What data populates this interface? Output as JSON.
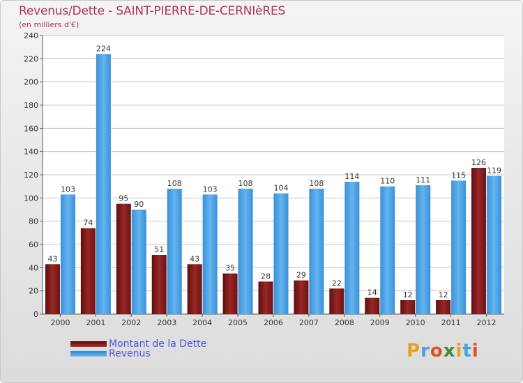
{
  "header": {
    "title": "Revenus/Dette - SAINT-PIERRE-DE-CERNIèRES",
    "subtitle": "(en milliers d'€)"
  },
  "legend": [
    {
      "label": "Montant de la Dette",
      "color": "#8b1a1a"
    },
    {
      "label": "Revenus",
      "color": "#3d9be0"
    }
  ],
  "logo": {
    "letters": [
      "P",
      "r",
      "o",
      "x",
      "i",
      "t",
      "i"
    ],
    "colors": [
      "#e8a020",
      "#4aa0e0",
      "#e05020",
      "#3c8c3c",
      "#e8a020",
      "#4aa0e0",
      "#e05020"
    ]
  },
  "chart_data": {
    "type": "bar",
    "title": "Revenus/Dette - SAINT-PIERRE-DE-CERNIèRES",
    "subtitle": "(en milliers d'€)",
    "categories": [
      "2000",
      "2001",
      "2002",
      "2003",
      "2004",
      "2005",
      "2006",
      "2007",
      "2008",
      "2009",
      "2010",
      "2011",
      "2012"
    ],
    "series": [
      {
        "name": "Montant de la Dette",
        "color": "#8b1a1a",
        "values": [
          43,
          74,
          95,
          51,
          43,
          35,
          28,
          29,
          22,
          14,
          12,
          12,
          126
        ]
      },
      {
        "name": "Revenus",
        "color": "#3d9be0",
        "values": [
          103,
          224,
          90,
          108,
          103,
          108,
          104,
          108,
          114,
          110,
          111,
          115,
          119
        ]
      }
    ],
    "ylim": [
      0,
      240
    ],
    "yticks": [
      0,
      20,
      40,
      60,
      80,
      100,
      120,
      140,
      160,
      180,
      200,
      220,
      240
    ],
    "grid": true,
    "legend_position": "bottom-left"
  }
}
